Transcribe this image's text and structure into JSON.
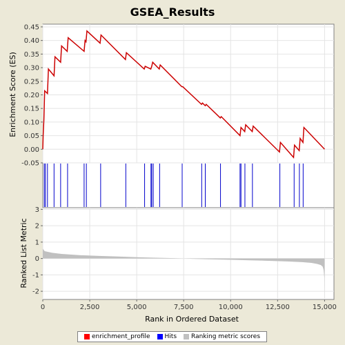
{
  "chart_data": {
    "type": "line",
    "title": "GSEA_Results",
    "xlabel": "Rank in Ordered Dataset",
    "xlim": [
      0,
      15500
    ],
    "x_ticks": [
      0,
      2500,
      5000,
      7500,
      10000,
      12500,
      15000
    ],
    "x_tick_labels": [
      "0",
      "2,500",
      "5,000",
      "7,500",
      "10,000",
      "12,500",
      "15,000"
    ],
    "panels": [
      {
        "name": "enrichment",
        "ylabel": "Enrichment Score (ES)",
        "ylim": [
          -0.05,
          0.46
        ],
        "y_ticks": [
          -0.05,
          0.0,
          0.05,
          0.1,
          0.15,
          0.2,
          0.25,
          0.3,
          0.35,
          0.4,
          0.45
        ],
        "y_tick_labels": [
          "-0.05",
          "0.00",
          "0.05",
          "0.10",
          "0.15",
          "0.20",
          "0.25",
          "0.30",
          "0.35",
          "0.40",
          "0.45"
        ],
        "grid": true
      },
      {
        "name": "hits",
        "ylabel": ""
      },
      {
        "name": "ranked_metric",
        "ylabel": "Ranked List Metric",
        "ylim": [
          -2.5,
          3.1
        ],
        "y_ticks": [
          -2,
          -1,
          0,
          1,
          2,
          3
        ],
        "y_tick_labels": [
          "-2",
          "-1",
          "0",
          "1",
          "2",
          "3"
        ],
        "grid": true
      }
    ],
    "series": [
      {
        "name": "enrichment_profile",
        "color": "#cc0000",
        "x": [
          0,
          20,
          60,
          100,
          250,
          300,
          600,
          650,
          950,
          1000,
          1300,
          1350,
          2200,
          2250,
          2300,
          2350,
          3050,
          3100,
          4400,
          4450,
          5400,
          5450,
          5750,
          5800,
          5850,
          6200,
          6250,
          7400,
          7450,
          8450,
          8500,
          8650,
          8700,
          9450,
          9500,
          10500,
          10550,
          10750,
          10800,
          11150,
          11200,
          12600,
          12650,
          13350,
          13400,
          13650,
          13700,
          13850,
          13900,
          15000
        ],
        "y": [
          0.0,
          0.05,
          0.11,
          0.215,
          0.205,
          0.295,
          0.27,
          0.34,
          0.32,
          0.38,
          0.36,
          0.41,
          0.36,
          0.4,
          0.395,
          0.435,
          0.39,
          0.42,
          0.33,
          0.355,
          0.295,
          0.305,
          0.295,
          0.305,
          0.32,
          0.295,
          0.31,
          0.23,
          0.23,
          0.165,
          0.17,
          0.16,
          0.165,
          0.115,
          0.12,
          0.05,
          0.08,
          0.065,
          0.09,
          0.065,
          0.085,
          -0.01,
          0.025,
          -0.03,
          0.015,
          -0.005,
          0.04,
          0.025,
          0.08,
          0.0
        ]
      },
      {
        "name": "Hits",
        "color": "#0000cc",
        "x": [
          80,
          140,
          250,
          600,
          950,
          1320,
          2200,
          2320,
          3080,
          4420,
          5420,
          5760,
          5800,
          5880,
          6220,
          7420,
          8460,
          8650,
          9460,
          10500,
          10550,
          10760,
          11160,
          12620,
          13380,
          13660,
          13860
        ]
      },
      {
        "name": "Ranking metric scores",
        "color": "#c0c0c0",
        "x": [
          0,
          100,
          500,
          1000,
          2000,
          3000,
          4000,
          5000,
          6000,
          7000,
          7500,
          8000,
          9000,
          10000,
          11000,
          12000,
          13000,
          13800,
          14300,
          14600,
          14800,
          14900,
          14950,
          14990,
          15000
        ],
        "y": [
          0.6,
          0.45,
          0.35,
          0.28,
          0.2,
          0.16,
          0.12,
          0.08,
          0.05,
          0.02,
          0.0,
          -0.02,
          -0.05,
          -0.08,
          -0.11,
          -0.14,
          -0.18,
          -0.22,
          -0.27,
          -0.33,
          -0.4,
          -0.5,
          -0.7,
          -1.2,
          -2.3
        ]
      }
    ],
    "legend": {
      "position": "bottom",
      "entries": [
        {
          "label": "enrichment_profile",
          "color": "#ff0000"
        },
        {
          "label": "Hits",
          "color": "#0000ff"
        },
        {
          "label": "Ranking metric scores",
          "color": "#c0c0c0"
        }
      ]
    }
  }
}
